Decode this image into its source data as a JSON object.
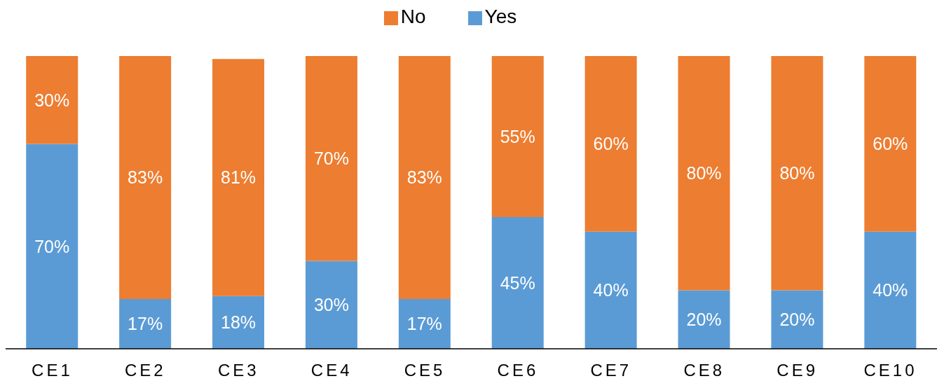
{
  "chart_data": {
    "type": "bar",
    "stacked": true,
    "legend": "top",
    "grid": false,
    "categories": [
      "CE1",
      "CE2",
      "CE3",
      "CE4",
      "CE5",
      "CE6",
      "CE7",
      "CE8",
      "CE9",
      "CE10"
    ],
    "series": [
      {
        "name": "Yes",
        "color": "#5b9bd5",
        "values": [
          70,
          17,
          18,
          30,
          17,
          45,
          40,
          20,
          20,
          40
        ],
        "value_labels": [
          "70%",
          "17%",
          "18%",
          "30%",
          "17%",
          "45%",
          "40%",
          "20%",
          "20%",
          "40%"
        ]
      },
      {
        "name": "No",
        "color": "#ed7d31",
        "values": [
          30,
          83,
          81,
          70,
          83,
          55,
          60,
          80,
          80,
          60
        ],
        "value_labels": [
          "30%",
          "83%",
          "81%",
          "70%",
          "83%",
          "55%",
          "60%",
          "80%",
          "80%",
          "60%"
        ]
      }
    ]
  }
}
